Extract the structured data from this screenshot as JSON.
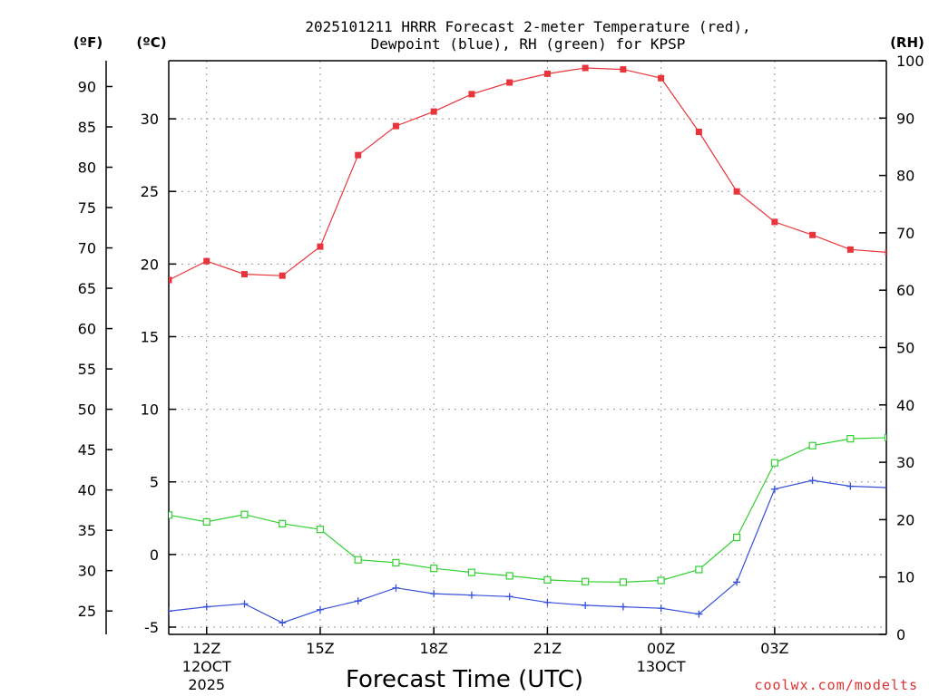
{
  "chart_data": {
    "type": "line",
    "title_line1": "2025101211 HRRR Forecast 2-meter Temperature (red),",
    "title_line2": "Dewpoint (blue), RH (green) for KPSP",
    "xlabel": "Forecast Time (UTC)",
    "credit": "coolwx.com/modelts",
    "units": {
      "fahrenheit": "(ºF)",
      "celsius": "(ºC)",
      "rh": "(RH)"
    },
    "x": [
      11,
      12,
      13,
      14,
      15,
      16,
      17,
      18,
      19,
      20,
      21,
      22,
      23,
      24,
      25,
      26,
      27,
      28,
      29,
      30
    ],
    "xlim": [
      11,
      29.95
    ],
    "x_ticks": [
      {
        "x": 12,
        "label": "12Z",
        "sub1": "12OCT",
        "sub2": "2025"
      },
      {
        "x": 15,
        "label": "15Z",
        "sub1": "",
        "sub2": ""
      },
      {
        "x": 18,
        "label": "18Z",
        "sub1": "",
        "sub2": ""
      },
      {
        "x": 21,
        "label": "21Z",
        "sub1": "",
        "sub2": ""
      },
      {
        "x": 24,
        "label": "00Z",
        "sub1": "13OCT",
        "sub2": ""
      },
      {
        "x": 27,
        "label": "03Z",
        "sub1": "",
        "sub2": ""
      }
    ],
    "ylim_c": [
      -5.5,
      34
    ],
    "ylim_rh": [
      0,
      100
    ],
    "c_ticks": [
      "-5",
      "0",
      "5",
      "10",
      "15",
      "20",
      "25",
      "30"
    ],
    "f_ticks": [
      "25",
      "30",
      "35",
      "40",
      "45",
      "50",
      "55",
      "60",
      "65",
      "70",
      "75",
      "80",
      "85",
      "90"
    ],
    "rh_ticks": [
      "0",
      "10",
      "20",
      "30",
      "40",
      "50",
      "60",
      "70",
      "80",
      "90",
      "100"
    ],
    "series": [
      {
        "name": "Temperature",
        "unit": "C",
        "color": "#e8343a",
        "marker": "filled-square",
        "values": [
          18.9,
          20.2,
          19.3,
          19.2,
          21.2,
          27.5,
          29.5,
          30.5,
          31.7,
          32.5,
          33.1,
          33.5,
          33.4,
          32.8,
          29.1,
          25.0,
          22.9,
          22.0,
          21.0,
          20.8
        ]
      },
      {
        "name": "Dewpoint",
        "unit": "C",
        "color": "#3650d8",
        "marker": "plus",
        "values": [
          -3.9,
          -3.6,
          -3.4,
          -4.7,
          -3.8,
          -3.2,
          -2.3,
          -2.7,
          -2.8,
          -2.9,
          -3.3,
          -3.5,
          -3.6,
          -3.7,
          -4.1,
          -1.9,
          4.5,
          5.1,
          4.7,
          4.6
        ]
      },
      {
        "name": "RH",
        "unit": "%",
        "color": "#30d030",
        "marker": "open-square",
        "values": [
          20.8,
          19.6,
          20.9,
          19.3,
          18.3,
          13.0,
          12.5,
          11.5,
          10.8,
          10.2,
          9.5,
          9.2,
          9.1,
          9.4,
          11.3,
          16.9,
          29.9,
          32.9,
          34.1,
          34.3
        ]
      }
    ]
  }
}
